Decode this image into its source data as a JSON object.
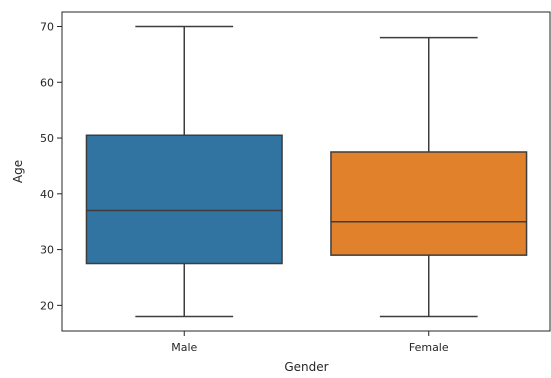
{
  "chart_data": {
    "type": "box",
    "xlabel": "Gender",
    "ylabel": "Age",
    "ylim": [
      15.4,
      72.6
    ],
    "yticks": [
      20,
      30,
      40,
      50,
      60,
      70
    ],
    "grid": false,
    "categories": [
      "Male",
      "Female"
    ],
    "boxes": [
      {
        "category": "Male",
        "min": 18,
        "q1": 27.5,
        "median": 37,
        "q3": 50.5,
        "max": 70,
        "color": "#3274a1"
      },
      {
        "category": "Female",
        "min": 18,
        "q1": 29,
        "median": 35,
        "q3": 47.5,
        "max": 68,
        "color": "#e1812c"
      }
    ],
    "line_color": "#3d3d3d"
  }
}
